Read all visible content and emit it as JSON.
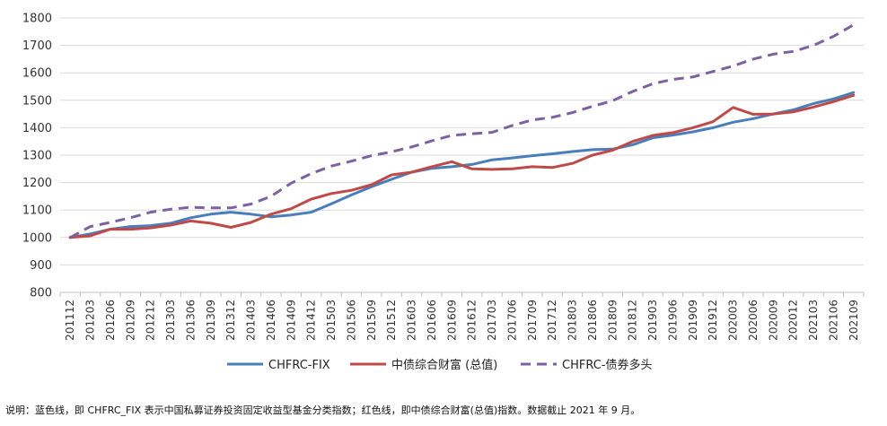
{
  "chart_data": {
    "type": "line",
    "title": "",
    "xlabel": "",
    "ylabel": "",
    "ylim": [
      800,
      1800
    ],
    "yticks": [
      800,
      900,
      1000,
      1100,
      1200,
      1300,
      1400,
      1500,
      1600,
      1700,
      1800
    ],
    "grid": "horizontal",
    "legend_position": "bottom",
    "xtick_labels": [
      "201112",
      "201203",
      "201206",
      "201209",
      "201212",
      "201303",
      "201306",
      "201309",
      "201312",
      "201403",
      "201406",
      "201409",
      "201412",
      "201503",
      "201506",
      "201509",
      "201512",
      "201603",
      "201606",
      "201609",
      "201612",
      "201703",
      "201706",
      "201709",
      "201712",
      "201803",
      "201806",
      "201809",
      "201812",
      "201903",
      "201906",
      "201909",
      "201912",
      "202003",
      "202006",
      "202009",
      "202012",
      "202103",
      "202106",
      "202109"
    ],
    "series": [
      {
        "name": "CHFRC-FIX",
        "color": "#4A7EBB",
        "dash": "solid",
        "values": [
          1000,
          1013,
          1030,
          1040,
          1043,
          1052,
          1072,
          1085,
          1092,
          1085,
          1075,
          1082,
          1092,
          1123,
          1155,
          1185,
          1212,
          1238,
          1252,
          1258,
          1266,
          1283,
          1290,
          1298,
          1305,
          1313,
          1320,
          1322,
          1338,
          1363,
          1373,
          1385,
          1400,
          1420,
          1433,
          1450,
          1465,
          1488,
          1505,
          1528
        ]
      },
      {
        "name": "中债综合财富 (总值)",
        "color": "#BE4B48",
        "dash": "solid",
        "values": [
          1000,
          1006,
          1030,
          1030,
          1035,
          1045,
          1060,
          1052,
          1037,
          1055,
          1085,
          1105,
          1140,
          1160,
          1172,
          1192,
          1228,
          1238,
          1258,
          1276,
          1250,
          1248,
          1250,
          1258,
          1255,
          1270,
          1300,
          1318,
          1350,
          1372,
          1382,
          1400,
          1422,
          1474,
          1449,
          1450,
          1458,
          1475,
          1495,
          1518
        ]
      },
      {
        "name": "CHFRC-债券多头",
        "color": "#7B62A0",
        "dash": "dashed",
        "values": [
          1000,
          1040,
          1055,
          1072,
          1092,
          1103,
          1110,
          1108,
          1108,
          1122,
          1150,
          1198,
          1233,
          1260,
          1278,
          1298,
          1312,
          1330,
          1352,
          1372,
          1378,
          1383,
          1408,
          1428,
          1438,
          1455,
          1478,
          1498,
          1532,
          1560,
          1576,
          1585,
          1605,
          1625,
          1650,
          1668,
          1678,
          1700,
          1733,
          1775
        ]
      }
    ]
  },
  "note": "说明：蓝色线，即 CHFRC_FIX 表示中国私募证券投资固定收益型基金分类指数；红色线，即中债综合财富(总值)指数。数据截止 2021 年 9 月。"
}
